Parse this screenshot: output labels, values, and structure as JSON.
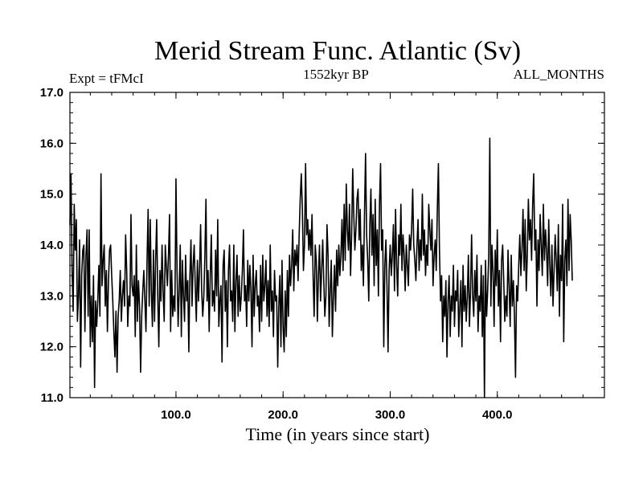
{
  "chart_data": {
    "type": "line",
    "title": "Merid Stream Func. Atlantic (Sv)",
    "subtitle_left": "Expt = tFMcI",
    "subtitle_center": "1552kyr BP",
    "subtitle_right": "ALL_MONTHS",
    "xlabel": "Time (in years since start)",
    "ylabel": "",
    "xlim": [
      1,
      500
    ],
    "ylim": [
      11.0,
      17.0
    ],
    "xticks": [
      100,
      200,
      300,
      400
    ],
    "xtick_labels": [
      "100.0",
      "200.0",
      "300.0",
      "400.0"
    ],
    "yticks": [
      11,
      12,
      13,
      14,
      15,
      16,
      17
    ],
    "ytick_labels": [
      "11.0",
      "12.0",
      "13.0",
      "14.0",
      "15.0",
      "16.0",
      "17.0"
    ],
    "line_color": "#000000",
    "grid": false,
    "series": [
      {
        "name": "Merid Stream Func. Atlantic",
        "x_start": 1,
        "x_step": 1,
        "values": [
          14.4,
          15.4,
          13.5,
          12.7,
          14.8,
          13.9,
          14.5,
          12.5,
          13.0,
          14.1,
          11.6,
          13.4,
          13.9,
          14.0,
          12.3,
          13.8,
          14.3,
          12.6,
          14.3,
          12.0,
          13.0,
          12.1,
          13.4,
          11.2,
          12.9,
          12.4,
          12.9,
          13.6,
          12.6,
          15.4,
          13.2,
          13.7,
          14.0,
          12.8,
          13.5,
          12.3,
          13.3,
          13.9,
          14.0,
          13.4,
          12.9,
          12.3,
          11.8,
          12.7,
          11.5,
          12.6,
          12.9,
          13.5,
          12.5,
          13.0,
          13.3,
          12.8,
          14.2,
          13.5,
          12.4,
          13.0,
          12.8,
          14.6,
          13.2,
          13.0,
          13.4,
          12.2,
          14.0,
          12.5,
          13.3,
          12.8,
          11.5,
          12.6,
          13.1,
          13.5,
          12.9,
          12.3,
          13.7,
          14.7,
          12.8,
          14.5,
          13.1,
          12.4,
          13.9,
          12.5,
          13.7,
          14.5,
          13.0,
          12.0,
          13.5,
          12.9,
          14.0,
          13.1,
          12.5,
          14.0,
          13.6,
          13.2,
          13.8,
          14.6,
          12.3,
          13.5,
          12.6,
          13.0,
          12.7,
          15.3,
          13.5,
          12.4,
          13.1,
          14.0,
          12.2,
          13.7,
          13.0,
          12.5,
          13.8,
          12.9,
          13.3,
          11.9,
          13.4,
          14.1,
          12.8,
          13.6,
          14.0,
          13.2,
          12.5,
          13.7,
          12.9,
          13.5,
          14.4,
          13.1,
          12.6,
          13.0,
          13.8,
          14.9,
          12.9,
          13.5,
          12.3,
          13.4,
          14.2,
          12.8,
          13.1,
          12.7,
          13.9,
          13.0,
          14.5,
          12.4,
          12.9,
          13.2,
          11.7,
          13.6,
          13.9,
          12.7,
          13.3,
          12.0,
          13.5,
          14.0,
          12.9,
          13.1,
          12.5,
          14.0,
          12.3,
          13.3,
          13.8,
          12.6,
          13.4,
          12.7,
          13.0,
          13.5,
          14.3,
          12.9,
          13.2,
          12.4,
          13.7,
          12.9,
          13.6,
          13.1,
          12.0,
          13.8,
          12.6,
          13.2,
          13.5,
          12.8,
          13.0,
          12.3,
          13.6,
          12.5,
          13.8,
          12.9,
          13.2,
          13.7,
          12.6,
          13.3,
          12.4,
          14.0,
          12.7,
          13.1,
          12.2,
          13.5,
          12.9,
          13.0,
          11.6,
          12.8,
          13.4,
          12.0,
          13.7,
          12.4,
          11.9,
          13.1,
          12.2,
          13.5,
          12.6,
          13.8,
          13.2,
          13.6,
          14.3,
          13.1,
          13.9,
          13.6,
          14.0,
          13.3,
          14.2,
          14.9,
          15.4,
          14.7,
          13.5,
          14.0,
          15.6,
          14.2,
          14.5,
          13.9,
          14.3,
          13.8,
          14.6,
          13.4,
          12.6,
          14.0,
          13.7,
          12.5,
          13.4,
          14.0,
          12.9,
          13.5,
          14.1,
          13.3,
          12.6,
          13.0,
          14.4,
          13.8,
          12.4,
          13.1,
          13.7,
          12.2,
          13.0,
          13.6,
          12.7,
          13.9,
          13.2,
          14.0,
          13.4,
          13.8,
          14.5,
          13.5,
          14.8,
          13.7,
          15.2,
          14.3,
          13.9,
          14.8,
          13.4,
          14.2,
          15.5,
          14.6,
          13.9,
          14.3,
          14.9,
          15.1,
          14.1,
          14.7,
          13.5,
          14.0,
          13.2,
          14.6,
          15.8,
          14.2,
          13.7,
          12.9,
          14.4,
          15.1,
          13.8,
          14.6,
          13.2,
          14.9,
          13.6,
          14.3,
          13.0,
          14.8,
          15.6,
          13.9,
          14.3,
          12.0,
          13.6,
          14.1,
          13.2,
          11.9,
          13.5,
          14.0,
          13.4,
          13.8,
          14.4,
          13.1,
          14.7,
          13.6,
          13.0,
          14.2,
          13.8,
          14.8,
          13.5,
          14.2,
          13.8,
          13.1,
          14.0,
          13.6,
          13.2,
          14.2,
          13.9,
          14.3,
          15.1,
          14.0,
          13.7,
          13.3,
          14.0,
          14.5,
          13.5,
          14.1,
          13.7,
          15.0,
          13.8,
          14.3,
          13.4,
          14.0,
          13.6,
          14.8,
          14.3,
          13.9,
          14.5,
          13.2,
          13.8,
          14.1,
          13.5,
          14.7,
          15.6,
          13.9,
          12.9,
          13.4,
          12.1,
          13.0,
          12.6,
          13.3,
          11.8,
          12.9,
          13.4,
          12.2,
          13.0,
          12.7,
          13.6,
          12.4,
          13.1,
          12.9,
          13.5,
          12.2,
          12.8,
          13.3,
          12.0,
          13.6,
          12.7,
          13.2,
          12.5,
          13.0,
          13.8,
          12.4,
          13.1,
          14.2,
          13.0,
          12.6,
          13.5,
          12.9,
          13.8,
          12.3,
          13.0,
          12.7,
          13.6,
          12.2,
          13.4,
          11.0,
          13.7,
          12.6,
          13.1,
          13.8,
          16.1,
          12.8,
          14.0,
          13.5,
          12.4,
          13.9,
          13.2,
          14.3,
          12.8,
          13.5,
          12.1,
          13.7,
          14.0,
          13.3,
          12.5,
          13.0,
          12.6,
          13.9,
          13.2,
          12.4,
          13.8,
          12.8,
          13.3,
          12.6,
          11.4,
          13.2,
          12.9,
          13.6,
          14.2,
          13.4,
          13.9,
          14.7,
          13.5,
          14.5,
          13.1,
          13.8,
          14.9,
          14.1,
          14.5,
          13.7,
          14.8,
          15.4,
          13.9,
          14.3,
          12.8,
          14.1,
          13.5,
          14.6,
          14.0,
          13.4,
          14.8,
          13.7,
          14.3,
          13.9,
          13.2,
          14.5,
          13.6,
          13.0,
          14.0,
          12.8,
          13.5,
          14.2,
          13.7,
          13.1,
          14.4,
          12.6,
          13.8,
          13.3,
          14.8,
          12.1,
          13.7,
          14.1,
          13.2,
          14.9,
          13.5,
          14.6,
          14.1,
          13.3
        ]
      }
    ]
  }
}
